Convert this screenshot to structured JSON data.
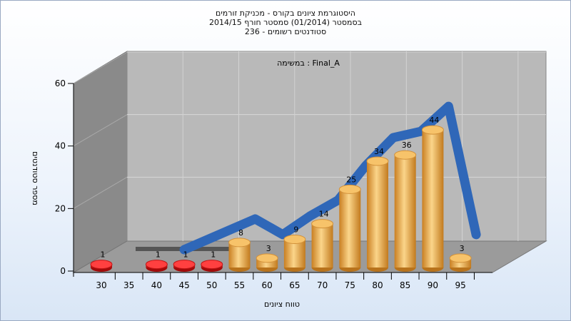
{
  "chart_data": {
    "type": "bar",
    "title_lines": [
      "היסטוגרמת ציונים בקורס - מכניקת זורמים",
      "בסמסטר  (01/2014)  סמסטר חורף 2014/15",
      "סטודנטים רשומים - 236"
    ],
    "annotation": "במשימה : Final_A",
    "xlabel": "טווח ציונים",
    "ylabel": "מספר סטודנטים",
    "ylim": [
      0,
      60
    ],
    "yticks": [
      0,
      20,
      40,
      60
    ],
    "xticks": [
      "30",
      "35",
      "40",
      "45",
      "50",
      "55",
      "60",
      "65",
      "70",
      "75",
      "80",
      "85",
      "90",
      "95"
    ],
    "bins": [
      30,
      40,
      45,
      50,
      55,
      60,
      65,
      70,
      75,
      80,
      85,
      90,
      95
    ],
    "values": [
      1,
      1,
      1,
      1,
      8,
      3,
      9,
      14,
      25,
      34,
      36,
      44,
      3
    ],
    "bar_colors": [
      "#e02020",
      "#e02020",
      "#e02020",
      "#e02020",
      "#e9a94a",
      "#e9a94a",
      "#e9a94a",
      "#e9a94a",
      "#e9a94a",
      "#e9a94a",
      "#e9a94a",
      "#e9a94a",
      "#e9a94a"
    ],
    "trend_color": "#2f67b8",
    "grid": true
  }
}
